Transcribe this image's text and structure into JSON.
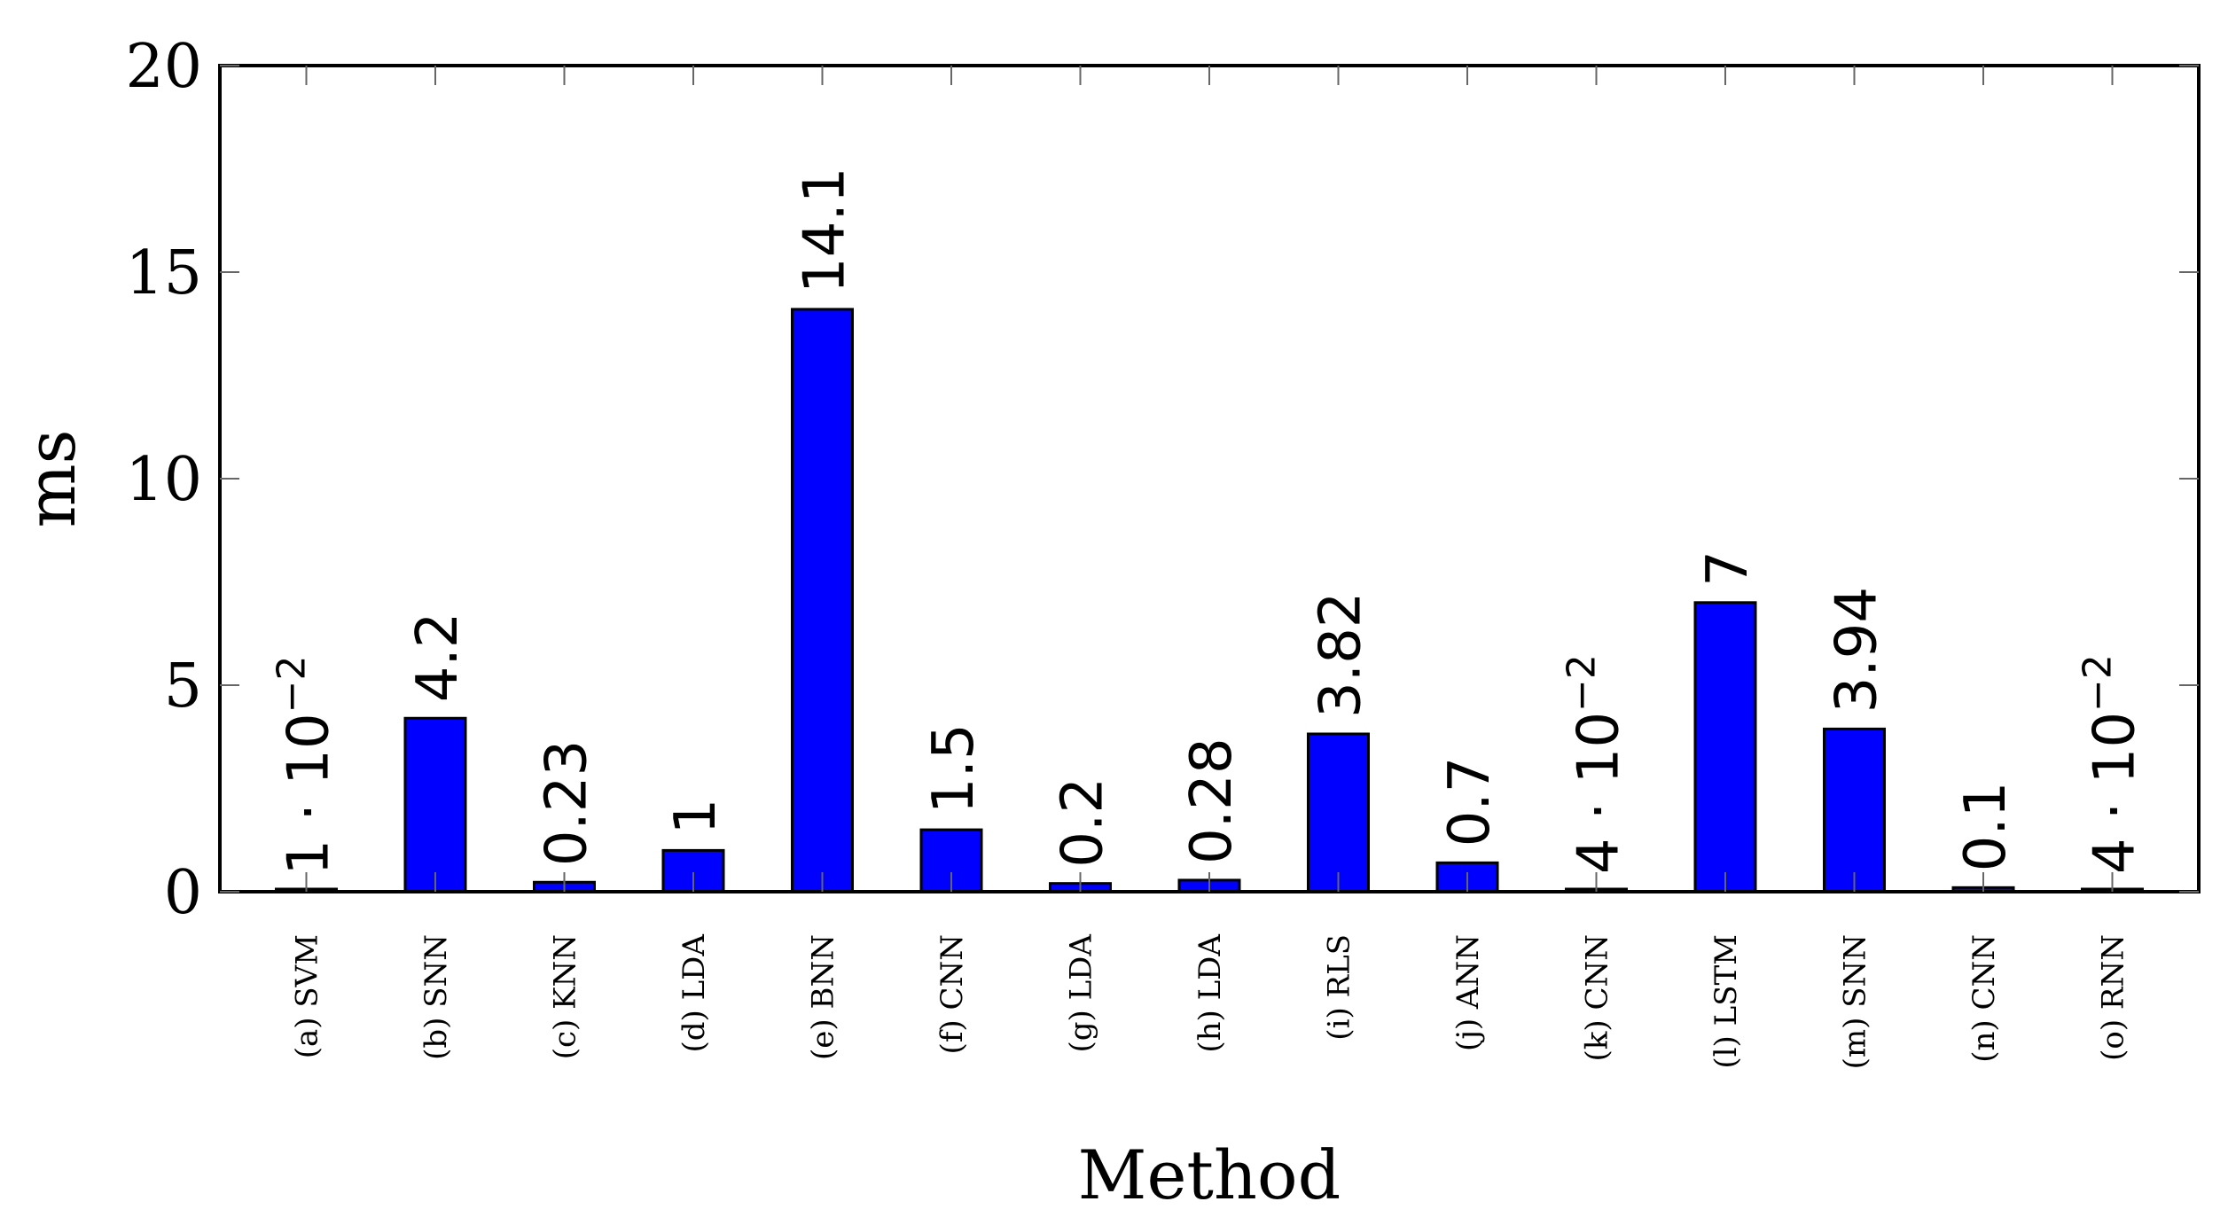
{
  "chart_data": {
    "type": "bar",
    "title": "",
    "xlabel": "Method",
    "ylabel": "ms",
    "ylim": [
      0,
      20
    ],
    "yticks": [
      0,
      5,
      10,
      15,
      20
    ],
    "grid": false,
    "bar_color": "#0000ff",
    "categories": [
      "(a) SVM",
      "(b) SNN",
      "(c) KNN",
      "(d) LDA",
      "(e) BNN",
      "(f) CNN",
      "(g) LDA",
      "(h) LDA",
      "(i) RLS",
      "(j) ANN",
      "(k) CNN",
      "(l) LSTM",
      "(m) SNN",
      "(n) CNN",
      "(o) RNN"
    ],
    "values": [
      0.01,
      4.2,
      0.23,
      1,
      14.1,
      1.5,
      0.2,
      0.28,
      3.82,
      0.7,
      0.04,
      7,
      3.94,
      0.1,
      0.04
    ],
    "data_labels": [
      {
        "mantissa": "1",
        "exponent": "−2"
      },
      {
        "text": "4.2"
      },
      {
        "text": "0.23"
      },
      {
        "text": "1"
      },
      {
        "text": "14.1"
      },
      {
        "text": "1.5"
      },
      {
        "text": "0.2"
      },
      {
        "text": "0.28"
      },
      {
        "text": "3.82"
      },
      {
        "text": "0.7"
      },
      {
        "mantissa": "4",
        "exponent": "−2"
      },
      {
        "text": "7"
      },
      {
        "text": "3.94"
      },
      {
        "text": "0.1"
      },
      {
        "mantissa": "4",
        "exponent": "−2"
      }
    ]
  }
}
